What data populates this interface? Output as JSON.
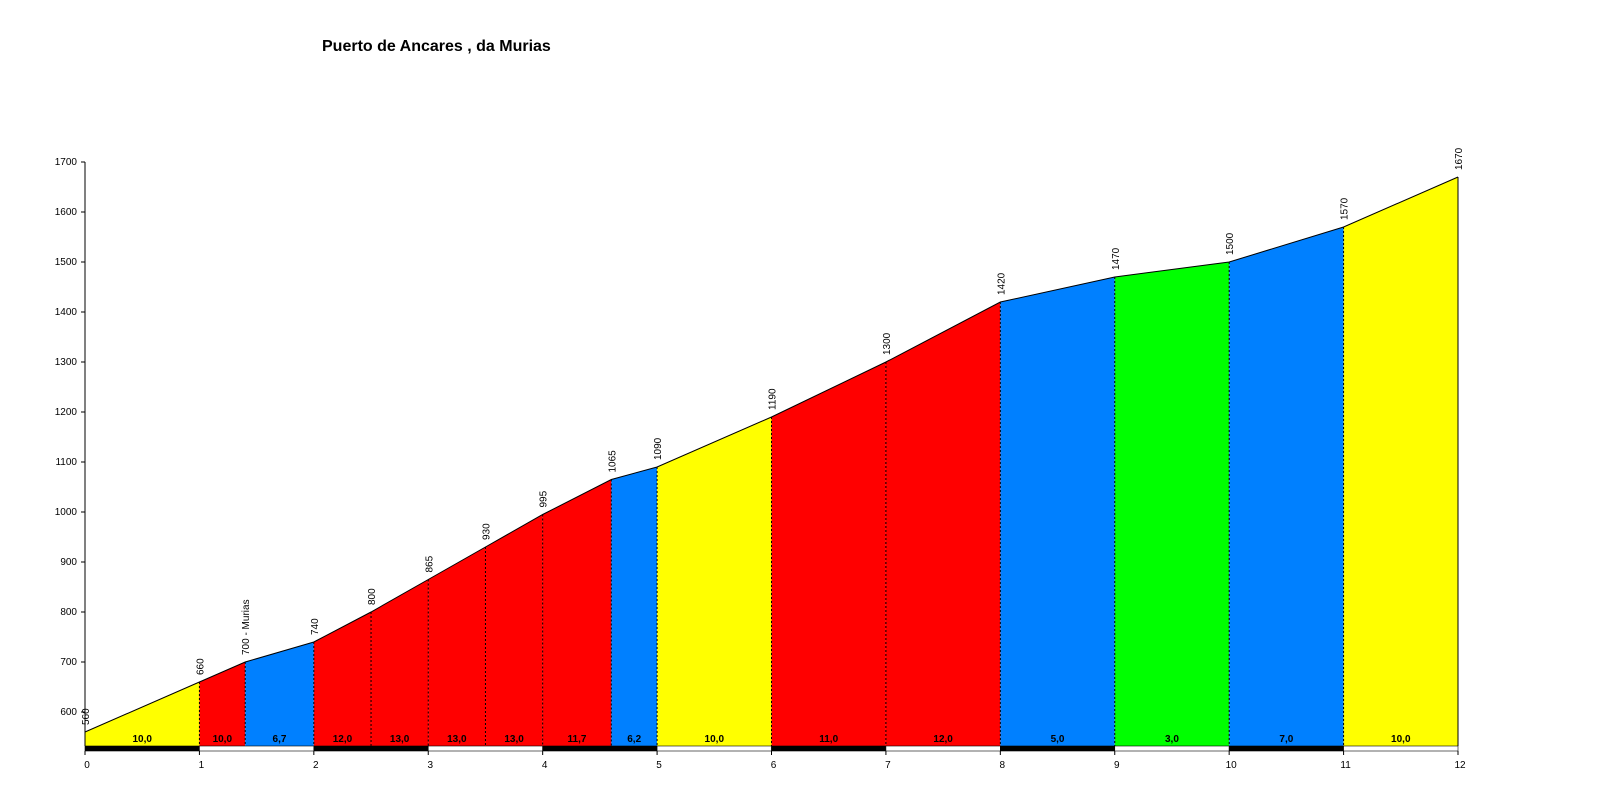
{
  "chart_data": {
    "type": "area",
    "title": "Puerto de Ancares , da Murias",
    "xlabel": "",
    "ylabel": "",
    "xlim": [
      0,
      12
    ],
    "ylim": [
      530,
      1700
    ],
    "x_ticks": [
      "0",
      "1",
      "2",
      "3",
      "4",
      "5",
      "6",
      "7",
      "8",
      "9",
      "10",
      "11",
      "12"
    ],
    "y_ticks": [
      "600",
      "700",
      "800",
      "900",
      "1000",
      "1100",
      "1200",
      "1300",
      "1400",
      "1500",
      "1600",
      "1700"
    ],
    "grid": false,
    "legend": "none",
    "colors": {
      "yellow": "#FFFF00",
      "red": "#FF0000",
      "blue": "#0080FF",
      "green": "#00FF00"
    },
    "points": [
      {
        "x": 0,
        "y": 560,
        "label": "560"
      },
      {
        "x": 1,
        "y": 660,
        "label": "660"
      },
      {
        "x": 1.4,
        "y": 700,
        "label": "700 - Murias"
      },
      {
        "x": 2,
        "y": 740,
        "label": "740"
      },
      {
        "x": 2.5,
        "y": 800,
        "label": "800"
      },
      {
        "x": 3,
        "y": 865,
        "label": "865"
      },
      {
        "x": 3.5,
        "y": 930,
        "label": "930"
      },
      {
        "x": 4,
        "y": 995,
        "label": "995"
      },
      {
        "x": 4.6,
        "y": 1065,
        "label": "1065"
      },
      {
        "x": 5,
        "y": 1090,
        "label": "1090"
      },
      {
        "x": 6,
        "y": 1190,
        "label": "1190"
      },
      {
        "x": 7,
        "y": 1300,
        "label": "1300"
      },
      {
        "x": 8,
        "y": 1420,
        "label": "1420"
      },
      {
        "x": 9,
        "y": 1470,
        "label": "1470"
      },
      {
        "x": 10,
        "y": 1500,
        "label": "1500"
      },
      {
        "x": 11,
        "y": 1570,
        "label": "1570"
      },
      {
        "x": 12,
        "y": 1670,
        "label": "1670"
      }
    ],
    "segments": [
      {
        "from": 0,
        "to": 1,
        "gradient": "10,0",
        "color": "yellow"
      },
      {
        "from": 1,
        "to": 1.4,
        "gradient": "10,0",
        "color": "red"
      },
      {
        "from": 1.4,
        "to": 2,
        "gradient": "6,7",
        "color": "blue"
      },
      {
        "from": 2,
        "to": 2.5,
        "gradient": "12,0",
        "color": "red"
      },
      {
        "from": 2.5,
        "to": 3,
        "gradient": "13,0",
        "color": "red"
      },
      {
        "from": 3,
        "to": 3.5,
        "gradient": "13,0",
        "color": "red"
      },
      {
        "from": 3.5,
        "to": 4,
        "gradient": "13,0",
        "color": "red"
      },
      {
        "from": 4,
        "to": 4.6,
        "gradient": "11,7",
        "color": "red"
      },
      {
        "from": 4.6,
        "to": 5,
        "gradient": "6,2",
        "color": "blue"
      },
      {
        "from": 5,
        "to": 6,
        "gradient": "10,0",
        "color": "yellow"
      },
      {
        "from": 6,
        "to": 7,
        "gradient": "11,0",
        "color": "red"
      },
      {
        "from": 7,
        "to": 8,
        "gradient": "12,0",
        "color": "red"
      },
      {
        "from": 8,
        "to": 9,
        "gradient": "5,0",
        "color": "blue"
      },
      {
        "from": 9,
        "to": 10,
        "gradient": "3,0",
        "color": "green"
      },
      {
        "from": 10,
        "to": 11,
        "gradient": "7,0",
        "color": "blue"
      },
      {
        "from": 11,
        "to": 12,
        "gradient": "10,0",
        "color": "yellow"
      }
    ]
  }
}
